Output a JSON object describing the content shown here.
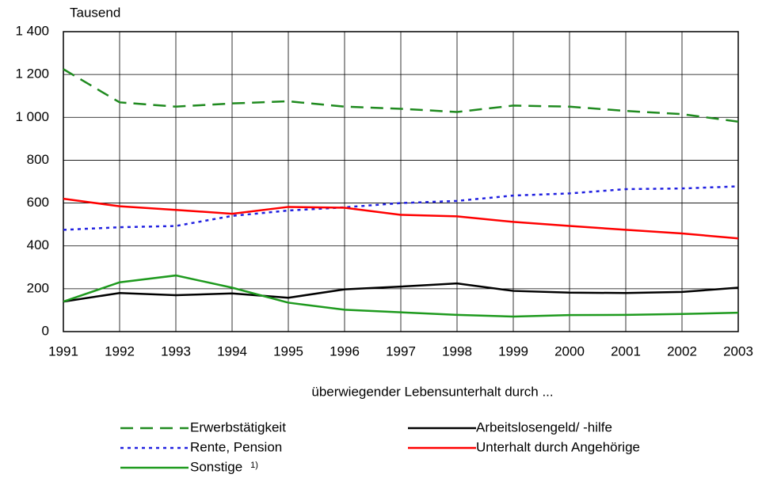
{
  "chart_data": {
    "type": "line",
    "y_label": "Tausend",
    "x_label": "überwiegender Lebensunterhalt durch ...",
    "x": [
      1991,
      1992,
      1993,
      1994,
      1995,
      1996,
      1997,
      1998,
      1999,
      2000,
      2001,
      2002,
      2003
    ],
    "xlim": [
      1991,
      2003
    ],
    "xticks": [
      1991,
      1992,
      1993,
      1994,
      1995,
      1996,
      1997,
      1998,
      1999,
      2000,
      2001,
      2002,
      2003
    ],
    "ylim": [
      0,
      1400
    ],
    "yticks": [
      0,
      200,
      400,
      600,
      800,
      {
        "value": 1000,
        "label": "1 000"
      },
      {
        "value": 1200,
        "label": "1 200"
      },
      {
        "value": 1400,
        "label": "1 400"
      }
    ],
    "grid": true,
    "series": [
      {
        "name": "Erwerbstätigkeit",
        "color": "#1f8a1f",
        "style": "dashed",
        "values": [
          1225,
          1070,
          1050,
          1065,
          1075,
          1050,
          1040,
          1025,
          1055,
          1050,
          1030,
          1015,
          980
        ]
      },
      {
        "name": "Arbeitslosengeld/ -hilfe",
        "color": "#000000",
        "style": "solid",
        "values": [
          140,
          180,
          170,
          178,
          158,
          197,
          210,
          225,
          190,
          182,
          180,
          185,
          205
        ]
      },
      {
        "name": "Rente,  Pension",
        "color": "#2020e0",
        "style": "dotted",
        "values": [
          475,
          487,
          493,
          540,
          565,
          580,
          600,
          610,
          635,
          645,
          665,
          668,
          678
        ]
      },
      {
        "name": "Unterhalt durch Angehörige",
        "color": "#ff0000",
        "style": "solid",
        "values": [
          620,
          585,
          568,
          550,
          582,
          578,
          545,
          538,
          512,
          493,
          475,
          458,
          435
        ]
      },
      {
        "name": "Sonstige",
        "footnote": "1)",
        "color": "#1e9a1e",
        "style": "solid",
        "values": [
          140,
          230,
          262,
          205,
          135,
          102,
          90,
          78,
          70,
          77,
          78,
          82,
          88
        ]
      }
    ]
  }
}
